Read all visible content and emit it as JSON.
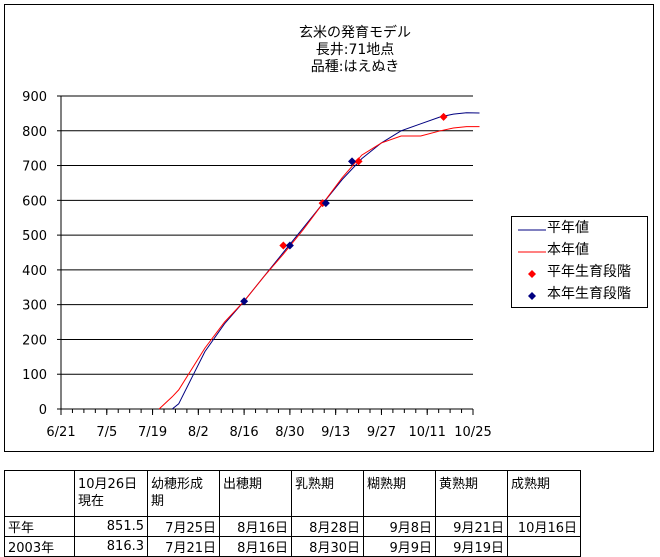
{
  "chart_data": {
    "type": "line",
    "title_lines": [
      "玄米の発育モデル",
      "長井:71地点",
      "品種:はえぬき"
    ],
    "xlabel": "",
    "ylabel": "",
    "ylim": [
      0,
      900
    ],
    "y_ticks": [
      "0",
      "100",
      "200",
      "300",
      "400",
      "500",
      "600",
      "700",
      "800",
      "900"
    ],
    "x_ticks": [
      "6/21",
      "7/5",
      "7/19",
      "8/2",
      "8/16",
      "8/30",
      "9/13",
      "9/27",
      "10/11",
      "10/25"
    ],
    "x_tick_days": [
      0,
      14,
      28,
      42,
      56,
      70,
      84,
      98,
      112,
      126
    ],
    "xlim": [
      0,
      126
    ],
    "grid": "horizontal",
    "legend_position": "right",
    "series": [
      {
        "name": "平年値",
        "color": "#000080",
        "kind": "line",
        "x": [
          34,
          36,
          40,
          44,
          50,
          56,
          62,
          68,
          74,
          80,
          86,
          92,
          98,
          104,
          110,
          116,
          120,
          124,
          128
        ],
        "y": [
          0,
          15,
          90,
          165,
          245,
          310,
          380,
          450,
          520,
          590,
          660,
          720,
          765,
          800,
          820,
          840,
          848,
          852,
          851
        ]
      },
      {
        "name": "本年値",
        "color": "#ff0000",
        "kind": "line",
        "x": [
          30,
          34,
          36,
          40,
          44,
          50,
          56,
          62,
          68,
          74,
          80,
          86,
          92,
          98,
          104,
          110,
          116,
          120,
          124,
          128
        ],
        "y": [
          0,
          35,
          55,
          115,
          175,
          250,
          310,
          380,
          445,
          515,
          590,
          665,
          730,
          765,
          785,
          785,
          800,
          808,
          812,
          812
        ]
      },
      {
        "name": "平年生育段階",
        "color": "#ff0000",
        "kind": "points",
        "x": [
          68,
          80,
          91,
          117
        ],
        "y": [
          470,
          592,
          712,
          840
        ]
      },
      {
        "name": "本年生育段階",
        "color": "#000080",
        "kind": "points",
        "x": [
          56,
          70,
          81,
          89
        ],
        "y": [
          310,
          470,
          592,
          712
        ]
      }
    ]
  },
  "table": {
    "header": [
      "",
      "10月26日\n現在",
      "幼穂形成\n期",
      "出穂期",
      "乳熟期",
      "糊熟期",
      "黄熟期",
      "成熟期"
    ],
    "rows": [
      [
        "平年",
        "851.5",
        "7月25日",
        "8月16日",
        "8月28日",
        "9月8日",
        "9月21日",
        "10月16日"
      ],
      [
        "2003年",
        "816.3",
        "7月21日",
        "8月16日",
        "8月30日",
        "9月9日",
        "9月19日",
        ""
      ]
    ]
  }
}
